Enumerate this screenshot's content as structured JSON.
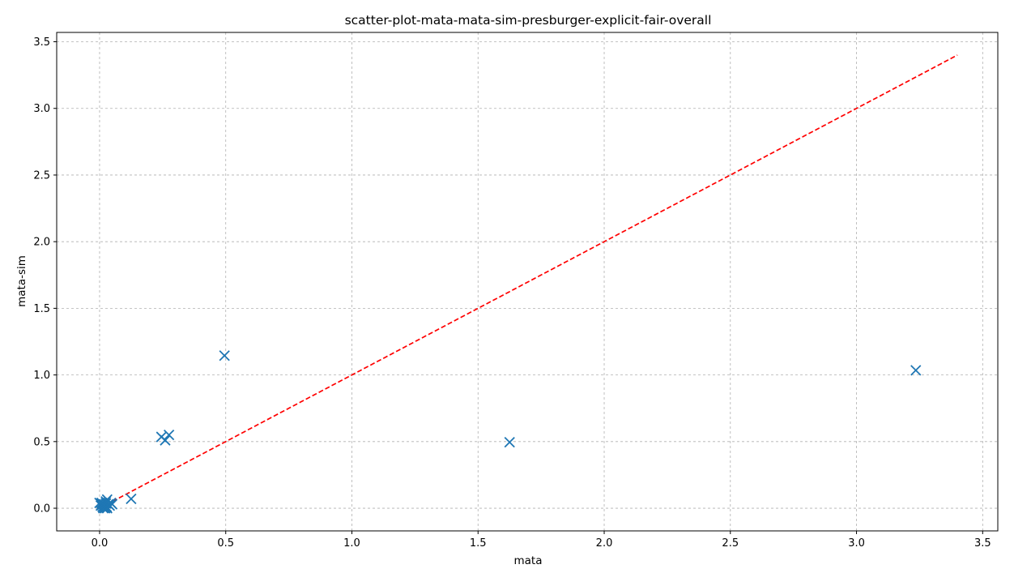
{
  "chart_data": {
    "type": "scatter",
    "title": "scatter-plot-mata-mata-sim-presburger-explicit-fair-overall",
    "xlabel": "mata",
    "ylabel": "mata-sim",
    "xlim": [
      -0.17,
      3.56
    ],
    "ylim": [
      -0.17,
      3.57
    ],
    "xticks": [
      0.0,
      0.5,
      1.0,
      1.5,
      2.0,
      2.5,
      3.0,
      3.5
    ],
    "yticks": [
      0.0,
      0.5,
      1.0,
      1.5,
      2.0,
      2.5,
      3.0,
      3.5
    ],
    "xtick_labels": [
      "0.0",
      "0.5",
      "1.0",
      "1.5",
      "2.0",
      "2.5",
      "3.0",
      "3.5"
    ],
    "ytick_labels": [
      "0.0",
      "0.5",
      "1.0",
      "1.5",
      "2.0",
      "2.5",
      "3.0",
      "3.5"
    ],
    "grid": true,
    "grid_style": "dashed",
    "marker": "x",
    "series": [
      {
        "color": "#1f77b4",
        "x": [
          0.0,
          0.005,
          0.01,
          0.012,
          0.015,
          0.018,
          0.02,
          0.022,
          0.025,
          0.028,
          0.03,
          0.035,
          0.04,
          0.045,
          0.05,
          0.02,
          0.015,
          0.01,
          0.008,
          0.03,
          0.025,
          0.125,
          0.245,
          0.26,
          0.275,
          0.495,
          1.625,
          3.235
        ],
        "y": [
          0.04,
          0.02,
          0.035,
          0.01,
          0.0,
          0.03,
          0.02,
          0.0,
          0.05,
          0.01,
          0.065,
          0.03,
          0.02,
          0.04,
          0.03,
          0.005,
          0.015,
          0.025,
          0.04,
          0.0,
          0.035,
          0.07,
          0.535,
          0.51,
          0.55,
          1.145,
          0.495,
          1.035
        ]
      }
    ],
    "reference_line": {
      "color": "#ff0000",
      "style": "dashed",
      "x": [
        0.0,
        3.4
      ],
      "y": [
        0.0,
        3.4
      ]
    }
  }
}
